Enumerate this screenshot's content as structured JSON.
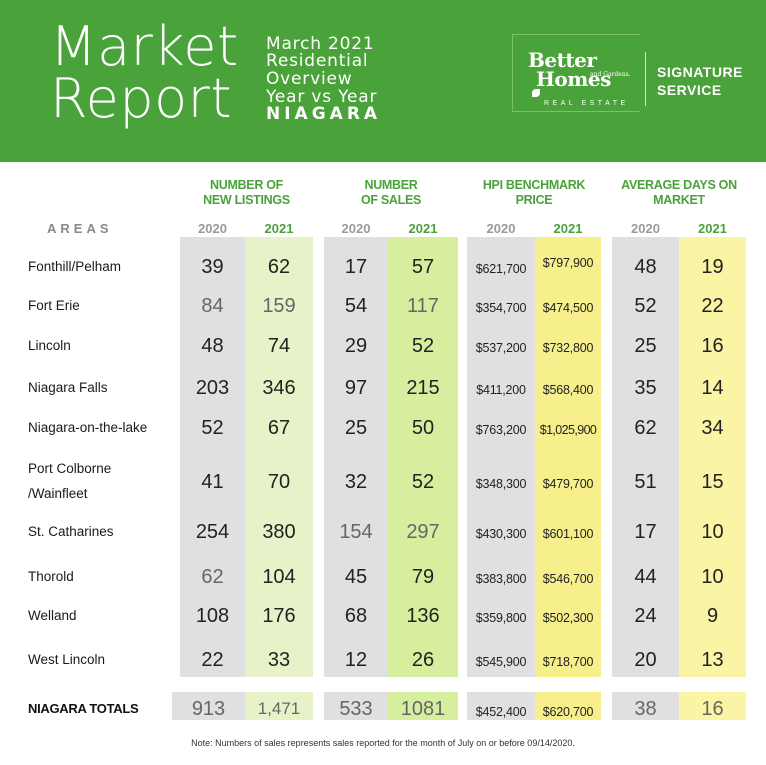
{
  "header": {
    "title_line1": "Market",
    "title_line2": "Report",
    "subtitle": [
      "March 2021",
      "Residential",
      "Overview",
      "Year vs Year",
      "NIAGARA"
    ],
    "brand": {
      "better": "Better",
      "homes": "Homes",
      "and_gardens": "and Gardens.",
      "real_estate": "REAL ESTATE",
      "signature_line1": "SIGNATURE",
      "signature_line2": "SERVICE"
    }
  },
  "table": {
    "areas_label": "AREAS",
    "groups": [
      {
        "line1": "NUMBER OF",
        "line2": "NEW LISTINGS"
      },
      {
        "line1": "NUMBER",
        "line2": "OF SALES"
      },
      {
        "line1": "HPI BENCHMARK",
        "line2": "PRICE"
      },
      {
        "line1": "AVERAGE DAYS ON",
        "line2": "MARKET"
      }
    ],
    "year_2020": "2020",
    "year_2021": "2021",
    "rows": [
      {
        "area": "Fonthill/Pelham",
        "area2": "",
        "nl20": "39",
        "nl21": "62",
        "s20": "17",
        "s21": "57",
        "p20": "$621,700",
        "p21": "$797,900",
        "d20": "48",
        "d21": "19"
      },
      {
        "area": "Fort Erie",
        "area2": "",
        "nl20": "84",
        "nl21": "159",
        "s20": "54",
        "s21": "117",
        "p20": "$354,700",
        "p21": "$474,500",
        "d20": "52",
        "d21": "22"
      },
      {
        "area": "Lincoln",
        "area2": "",
        "nl20": "48",
        "nl21": "74",
        "s20": "29",
        "s21": "52",
        "p20": "$537,200",
        "p21": "$732,800",
        "d20": "25",
        "d21": "16"
      },
      {
        "area": "Niagara Falls",
        "area2": "",
        "nl20": "203",
        "nl21": "346",
        "s20": "97",
        "s21": "215",
        "p20": "$411,200",
        "p21": "$568,400",
        "d20": "35",
        "d21": "14"
      },
      {
        "area": "Niagara-on-the-lake",
        "area2": "",
        "nl20": "52",
        "nl21": "67",
        "s20": "25",
        "s21": "50",
        "p20": "$763,200",
        "p21": "$1,025,900",
        "d20": "62",
        "d21": "34"
      },
      {
        "area": "Port Colborne",
        "area2": "/Wainfleet",
        "nl20": "41",
        "nl21": "70",
        "s20": "32",
        "s21": "52",
        "p20": "$348,300",
        "p21": "$479,700",
        "d20": "51",
        "d21": "15"
      },
      {
        "area": "St. Catharines",
        "area2": "",
        "nl20": "254",
        "nl21": "380",
        "s20": "154",
        "s21": "297",
        "p20": "$430,300",
        "p21": "$601,100",
        "d20": "17",
        "d21": "10"
      },
      {
        "area": "Thorold",
        "area2": "",
        "nl20": "62",
        "nl21": "104",
        "s20": "45",
        "s21": "79",
        "p20": "$383,800",
        "p21": "$546,700",
        "d20": "44",
        "d21": "10"
      },
      {
        "area": "Welland",
        "area2": "",
        "nl20": "108",
        "nl21": "176",
        "s20": "68",
        "s21": "136",
        "p20": "$359,800",
        "p21": "$502,300",
        "d20": "24",
        "d21": "9"
      },
      {
        "area": "West Lincoln",
        "area2": "",
        "nl20": "22",
        "nl21": "33",
        "s20": "12",
        "s21": "26",
        "p20": "$545,900",
        "p21": "$718,700",
        "d20": "20",
        "d21": "13"
      }
    ],
    "totals": {
      "label": "NIAGARA TOTALS",
      "nl20": "913",
      "nl21": "1,471",
      "s20": "533",
      "s21": "1081",
      "p20": "$452,400",
      "p21": "$620,700",
      "d20": "38",
      "d21": "16"
    }
  },
  "note": "Note: Numbers of sales represents sales reported for the month of July on or before 09/14/2020.",
  "colors": {
    "brand_green": "#4aa23a",
    "col_2020": "#e0e0e3",
    "col_2021_green": "#d6ee9e",
    "col_2021_yellow": "#faf4a5"
  }
}
